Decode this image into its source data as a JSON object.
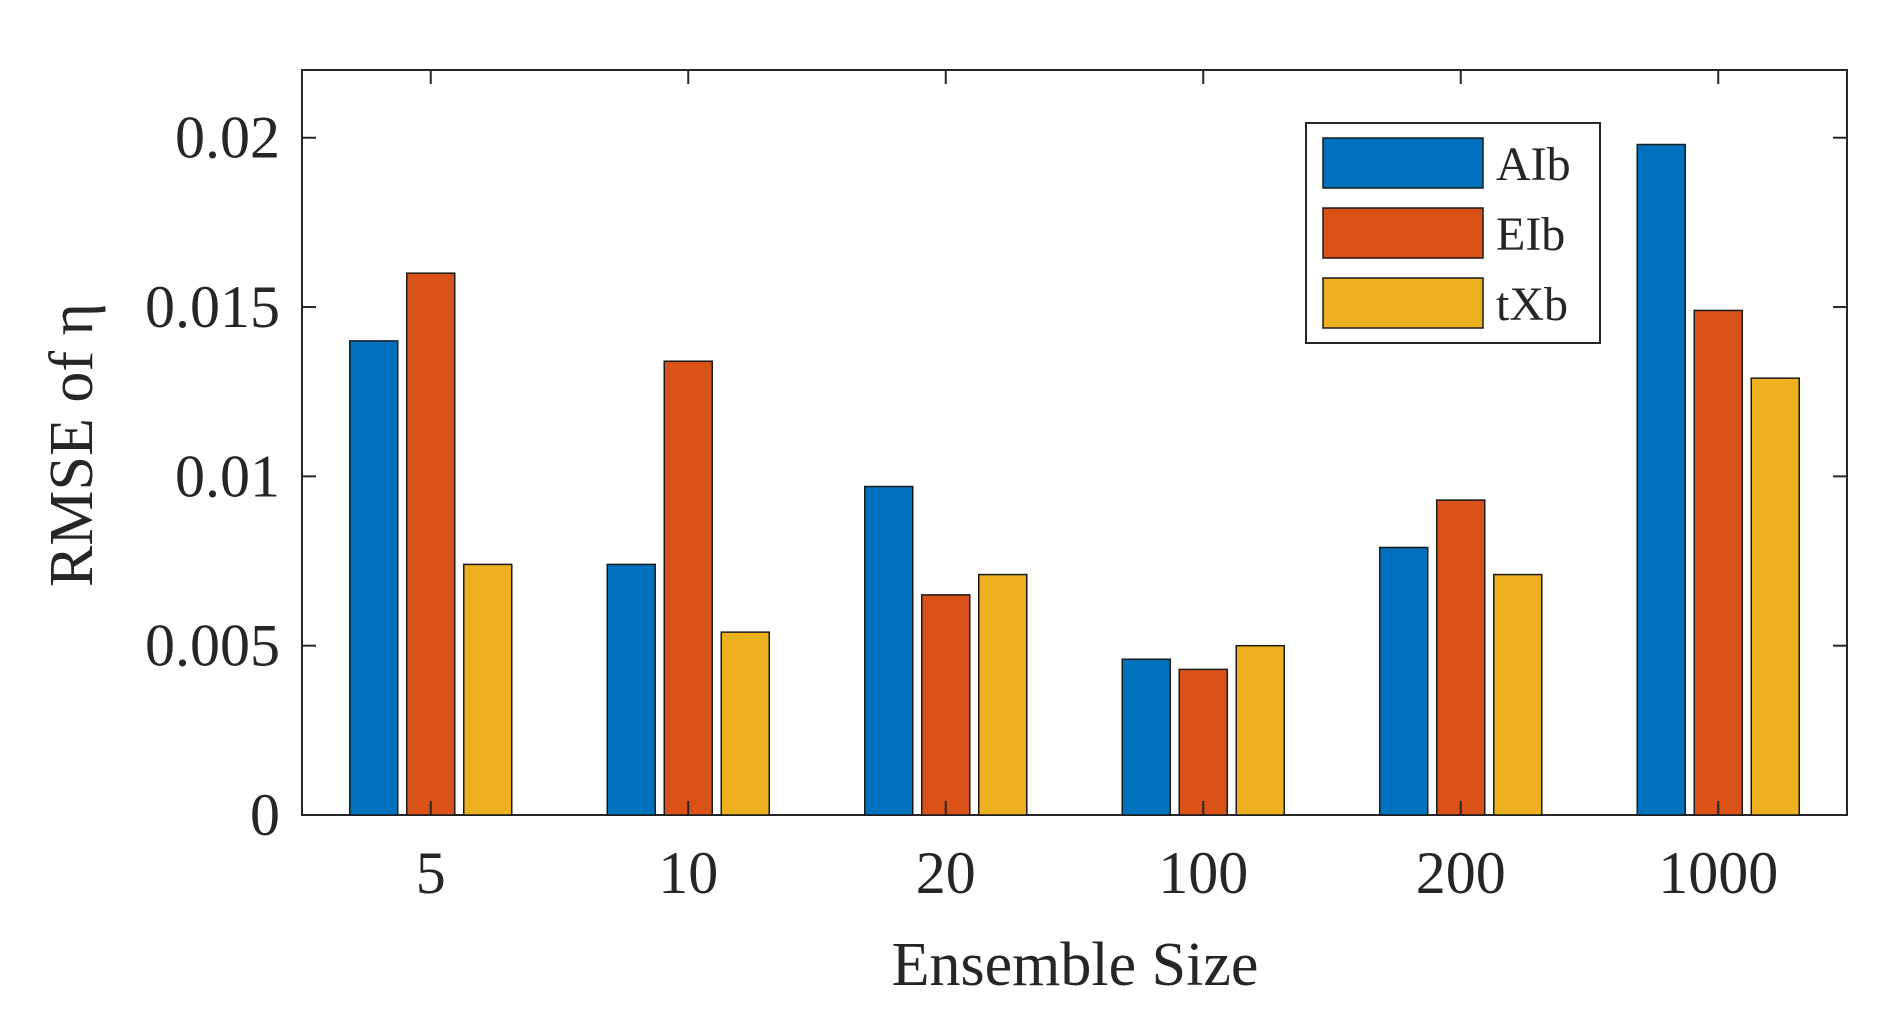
{
  "chart_data": {
    "type": "bar",
    "title": "",
    "xlabel": "Ensemble Size",
    "ylabel": "RMSE of η",
    "categories": [
      "5",
      "10",
      "20",
      "100",
      "200",
      "1000"
    ],
    "series": [
      {
        "name": "AIb",
        "color": "#0072BD",
        "values": [
          0.014,
          0.0074,
          0.0097,
          0.0046,
          0.0079,
          0.0198
        ]
      },
      {
        "name": "EIb",
        "color": "#D95319",
        "values": [
          0.016,
          0.0134,
          0.0065,
          0.0043,
          0.0093,
          0.0149
        ]
      },
      {
        "name": "tXb",
        "color": "#EDB120",
        "values": [
          0.0074,
          0.0054,
          0.0071,
          0.005,
          0.0071,
          0.0129
        ]
      }
    ],
    "ylim": [
      0,
      0.022
    ],
    "yticks": [
      0,
      0.005,
      0.01,
      0.015,
      0.02
    ],
    "ytick_labels": [
      "0",
      "0.005",
      "0.01",
      "0.015",
      "0.02"
    ],
    "grid": false,
    "legend_position": "top-right"
  }
}
